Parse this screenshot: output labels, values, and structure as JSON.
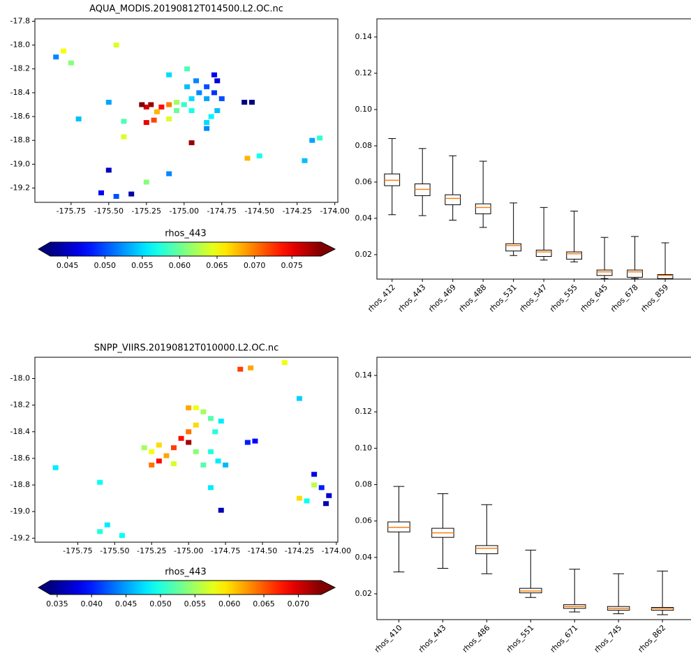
{
  "chart_data": [
    {
      "type": "scatter",
      "title": "AQUA_MODIS.20190812T014500.L2.OC.nc",
      "x": [
        -174.8,
        -174.78,
        -174.85,
        -174.8,
        -174.9,
        -174.95,
        -174.85,
        -174.75,
        -174.78,
        -174.82,
        -174.85,
        -174.85,
        -175.0,
        -175.05,
        -175.1,
        -175.15,
        -175.22,
        -175.25,
        -175.18,
        -175.05,
        -174.95,
        -175.2,
        -175.25,
        -175.1,
        -174.92,
        -174.98,
        -174.55,
        -174.6,
        -174.95,
        -175.28,
        -175.8,
        -175.75,
        -175.45,
        -175.85,
        -175.7,
        -175.5,
        -175.4,
        -175.4,
        -175.5,
        -175.25,
        -175.1,
        -175.45,
        -175.55,
        -175.35,
        -174.58,
        -174.5,
        -174.2,
        -174.15,
        -174.1,
        -174.98,
        -175.1
      ],
      "y": [
        -18.25,
        -18.3,
        -18.35,
        -18.4,
        -18.4,
        -18.45,
        -18.45,
        -18.45,
        -18.55,
        -18.6,
        -18.65,
        -18.7,
        -18.5,
        -18.48,
        -18.5,
        -18.52,
        -18.5,
        -18.52,
        -18.56,
        -18.55,
        -18.55,
        -18.63,
        -18.65,
        -18.62,
        -18.3,
        -18.35,
        -18.48,
        -18.48,
        -18.82,
        -18.5,
        -18.05,
        -18.15,
        -18.0,
        -18.1,
        -18.62,
        -18.48,
        -18.64,
        -18.77,
        -19.05,
        -19.15,
        -19.08,
        -19.27,
        -19.24,
        -19.25,
        -18.95,
        -18.93,
        -18.97,
        -18.8,
        -18.78,
        -18.2,
        -18.25
      ],
      "c": [
        0.047,
        0.046,
        0.05,
        0.049,
        0.052,
        0.055,
        0.053,
        0.05,
        0.054,
        0.056,
        0.055,
        0.052,
        0.058,
        0.062,
        0.07,
        0.074,
        0.078,
        0.076,
        0.068,
        0.06,
        0.057,
        0.072,
        0.075,
        0.064,
        0.052,
        0.054,
        0.041,
        0.042,
        0.078,
        0.079,
        0.065,
        0.061,
        0.064,
        0.052,
        0.054,
        0.053,
        0.059,
        0.064,
        0.045,
        0.061,
        0.052,
        0.05,
        0.047,
        0.044,
        0.068,
        0.057,
        0.054,
        0.053,
        0.058,
        0.059,
        0.055
      ],
      "xlim": [
        -175.99,
        -173.98
      ],
      "ylim": [
        -19.32,
        -17.78
      ],
      "xticks": [
        -175.75,
        {
          "value": -175.5,
          "label": "-175.50"
        },
        -175.25,
        {
          "value": -175.0,
          "label": "-175.00"
        },
        -174.75,
        {
          "value": -174.5,
          "label": "-174.50"
        },
        -174.25,
        {
          "value": -174.0,
          "label": "-174.00"
        }
      ],
      "yticks": [
        -17.8,
        {
          "value": -18.0,
          "label": "-18.0"
        },
        -18.2,
        -18.4,
        -18.6,
        -18.8,
        {
          "value": -19.0,
          "label": "-19.0"
        },
        -19.2
      ],
      "colorbar": {
        "label": "rhos_443",
        "cmap": "jet",
        "clim": [
          0.0427,
          0.0789
        ],
        "ticks": [
          0.045,
          {
            "value": 0.05,
            "label": "0.050"
          },
          0.055,
          {
            "value": 0.06,
            "label": "0.060"
          },
          0.065,
          {
            "value": 0.07,
            "label": "0.070"
          },
          0.075
        ]
      }
    },
    {
      "type": "box",
      "categories": [
        "rhos_412",
        "rhos_443",
        "rhos_469",
        "rhos_488",
        "rhos_531",
        "rhos_547",
        "rhos_555",
        "rhos_645",
        "rhos_678",
        "rhos_859"
      ],
      "whislo": [
        0.042,
        0.0415,
        0.039,
        0.035,
        0.0195,
        0.017,
        0.016,
        0.0068,
        0.0068,
        0.0066
      ],
      "q1": [
        0.058,
        0.0525,
        0.0475,
        0.0425,
        0.022,
        0.019,
        0.0175,
        0.0085,
        0.0075,
        0.0068
      ],
      "median": [
        0.061,
        0.056,
        0.051,
        0.046,
        0.025,
        0.0215,
        0.0205,
        0.0105,
        0.0105,
        0.0085
      ],
      "q3": [
        0.0645,
        0.059,
        0.053,
        0.048,
        0.026,
        0.0225,
        0.0215,
        0.0115,
        0.0115,
        0.009
      ],
      "whishi": [
        0.084,
        0.0785,
        0.0745,
        0.0715,
        0.0485,
        0.046,
        0.044,
        0.0295,
        0.03,
        0.0265
      ],
      "ylim": [
        0.0065,
        0.15
      ],
      "yticks": [
        0.02,
        0.04,
        0.06,
        0.08,
        {
          "value": 0.1,
          "label": "0.10"
        },
        0.12,
        0.14
      ],
      "box_color": "#000000",
      "median_color": "#ff7f0e"
    },
    {
      "type": "scatter",
      "title": "SNPP_VIIRS.20190812T010000.L2.OC.nc",
      "x": [
        -175.0,
        -174.95,
        -174.9,
        -174.85,
        -174.82,
        -174.78,
        -174.95,
        -175.0,
        -175.05,
        -175.0,
        -175.1,
        -175.2,
        -175.25,
        -175.3,
        -175.15,
        -174.95,
        -174.85,
        -174.8,
        -174.75,
        -174.9,
        -175.1,
        -175.25,
        -175.2,
        -174.6,
        -174.55,
        -174.78,
        -174.85,
        -175.6,
        -175.9,
        -175.55,
        -175.6,
        -175.45,
        -174.65,
        -174.58,
        -174.35,
        -174.25,
        -174.15,
        -174.1,
        -174.05,
        -174.07,
        -174.2,
        -174.25,
        -174.15
      ],
      "y": [
        -18.22,
        -18.22,
        -18.25,
        -18.3,
        -18.4,
        -18.32,
        -18.35,
        -18.4,
        -18.45,
        -18.48,
        -18.52,
        -18.5,
        -18.55,
        -18.52,
        -18.58,
        -18.55,
        -18.55,
        -18.62,
        -18.65,
        -18.65,
        -18.64,
        -18.65,
        -18.62,
        -18.48,
        -18.47,
        -18.99,
        -18.82,
        -18.78,
        -18.67,
        -19.1,
        -19.15,
        -19.18,
        -17.93,
        -17.92,
        -17.88,
        -18.15,
        -18.72,
        -18.82,
        -18.88,
        -18.94,
        -18.92,
        -18.9,
        -18.8
      ],
      "c": [
        0.062,
        0.058,
        0.055,
        0.052,
        0.05,
        0.048,
        0.06,
        0.064,
        0.068,
        0.072,
        0.066,
        0.06,
        0.058,
        0.055,
        0.062,
        0.054,
        0.05,
        0.048,
        0.046,
        0.052,
        0.057,
        0.064,
        0.068,
        0.04,
        0.039,
        0.036,
        0.048,
        0.049,
        0.048,
        0.048,
        0.05,
        0.049,
        0.066,
        0.062,
        0.058,
        0.047,
        0.038,
        0.04,
        0.037,
        0.036,
        0.049,
        0.06,
        0.056
      ],
      "xlim": [
        -176.04,
        -173.99
      ],
      "ylim": [
        -19.23,
        -17.84
      ],
      "xticks": [
        -175.75,
        {
          "value": -175.5,
          "label": "-175.50"
        },
        -175.25,
        {
          "value": -175.0,
          "label": "-175.00"
        },
        -174.75,
        {
          "value": -174.5,
          "label": "-174.50"
        },
        -174.25,
        {
          "value": -174.0,
          "label": "-174.00"
        }
      ],
      "yticks": [
        {
          "value": -18.0,
          "label": "-18.0"
        },
        -18.2,
        -18.4,
        -18.6,
        -18.8,
        {
          "value": -19.0,
          "label": "-19.0"
        },
        -19.2
      ],
      "colorbar": {
        "label": "rhos_443",
        "cmap": "jet",
        "clim": [
          0.034,
          0.0733
        ],
        "ticks": [
          0.035,
          {
            "value": 0.04,
            "label": "0.040"
          },
          0.045,
          {
            "value": 0.05,
            "label": "0.050"
          },
          0.055,
          {
            "value": 0.06,
            "label": "0.060"
          },
          0.065,
          {
            "value": 0.07,
            "label": "0.070"
          }
        ]
      }
    },
    {
      "type": "box",
      "categories": [
        "rhos_410",
        "rhos_443",
        "rhos_486",
        "rhos_551",
        "rhos_671",
        "rhos_745",
        "rhos_862"
      ],
      "whislo": [
        0.032,
        0.034,
        0.031,
        0.018,
        0.01,
        0.009,
        0.0085
      ],
      "q1": [
        0.054,
        0.051,
        0.042,
        0.0205,
        0.012,
        0.011,
        0.011
      ],
      "median": [
        0.0565,
        0.0535,
        0.045,
        0.0215,
        0.013,
        0.012,
        0.012
      ],
      "q3": [
        0.0595,
        0.056,
        0.0465,
        0.023,
        0.014,
        0.013,
        0.0125
      ],
      "whishi": [
        0.079,
        0.075,
        0.069,
        0.044,
        0.0335,
        0.031,
        0.0325
      ],
      "ylim": [
        0.0058,
        0.15
      ],
      "yticks": [
        0.02,
        0.04,
        0.06,
        0.08,
        {
          "value": 0.1,
          "label": "0.10"
        },
        0.12,
        0.14
      ],
      "box_color": "#000000",
      "median_color": "#ff7f0e"
    }
  ]
}
